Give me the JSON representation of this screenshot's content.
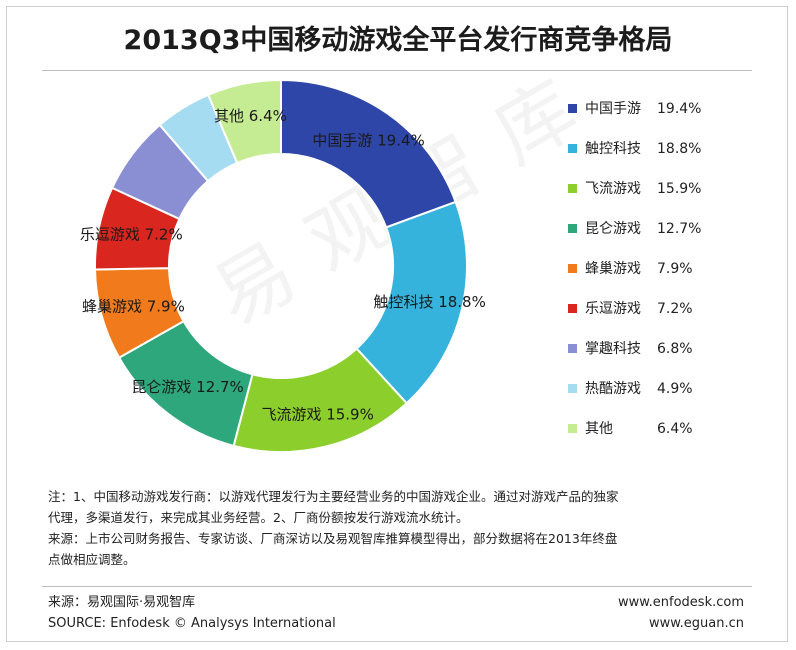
{
  "title": "2013Q3中国移动游戏全平台发行商竞争格局",
  "watermark": "易观智库",
  "chart_data": {
    "type": "pie",
    "title": "2013Q3中国移动游戏全平台发行商竞争格局",
    "legend_position": "right",
    "slices": [
      {
        "label": "中国手游",
        "value": 19.4,
        "display": "19.4%",
        "color": "#2e46a8"
      },
      {
        "label": "触控科技",
        "value": 18.8,
        "display": "18.8%",
        "color": "#36b3dc"
      },
      {
        "label": "飞流游戏",
        "value": 15.9,
        "display": "15.9%",
        "color": "#8ccf2d"
      },
      {
        "label": "昆仑游戏",
        "value": 12.7,
        "display": "12.7%",
        "color": "#2ea77d"
      },
      {
        "label": "蜂巢游戏",
        "value": 7.9,
        "display": "7.9%",
        "color": "#f07a1c"
      },
      {
        "label": "乐逗游戏",
        "value": 7.2,
        "display": "7.2%",
        "color": "#d9261f"
      },
      {
        "label": "掌趣科技",
        "value": 6.8,
        "display": "6.8%",
        "color": "#8a8fd4"
      },
      {
        "label": "热酷游戏",
        "value": 4.9,
        "display": "4.9%",
        "color": "#a6dcf2"
      },
      {
        "label": "其他",
        "value": 6.4,
        "display": "6.4%",
        "color": "#c6ec93"
      }
    ],
    "slice_labels_shown": [
      "中国手游",
      "触控科技",
      "飞流游戏",
      "昆仑游戏",
      "蜂巢游戏",
      "乐逗游戏",
      "其他"
    ]
  },
  "notes": {
    "line1": "注：1、中国移动游戏发行商：以游戏代理发行为主要经营业务的中国游戏企业。通过对游戏产品的独家",
    "line2": "代理，多渠道发行，来完成其业务经营。2、厂商份额按发行游戏流水统计。",
    "line3": "来源：上市公司财务报告、专家访谈、厂商深访以及易观智库推算模型得出，部分数据将在2013年终盘",
    "line4": "点做相应调整。"
  },
  "footer": {
    "source_cn": "来源：易观国际·易观智库",
    "source_en": "SOURCE: Enfodesk © Analysys International",
    "url1": "www.enfodesk.com",
    "url2": "www.eguan.cn"
  }
}
